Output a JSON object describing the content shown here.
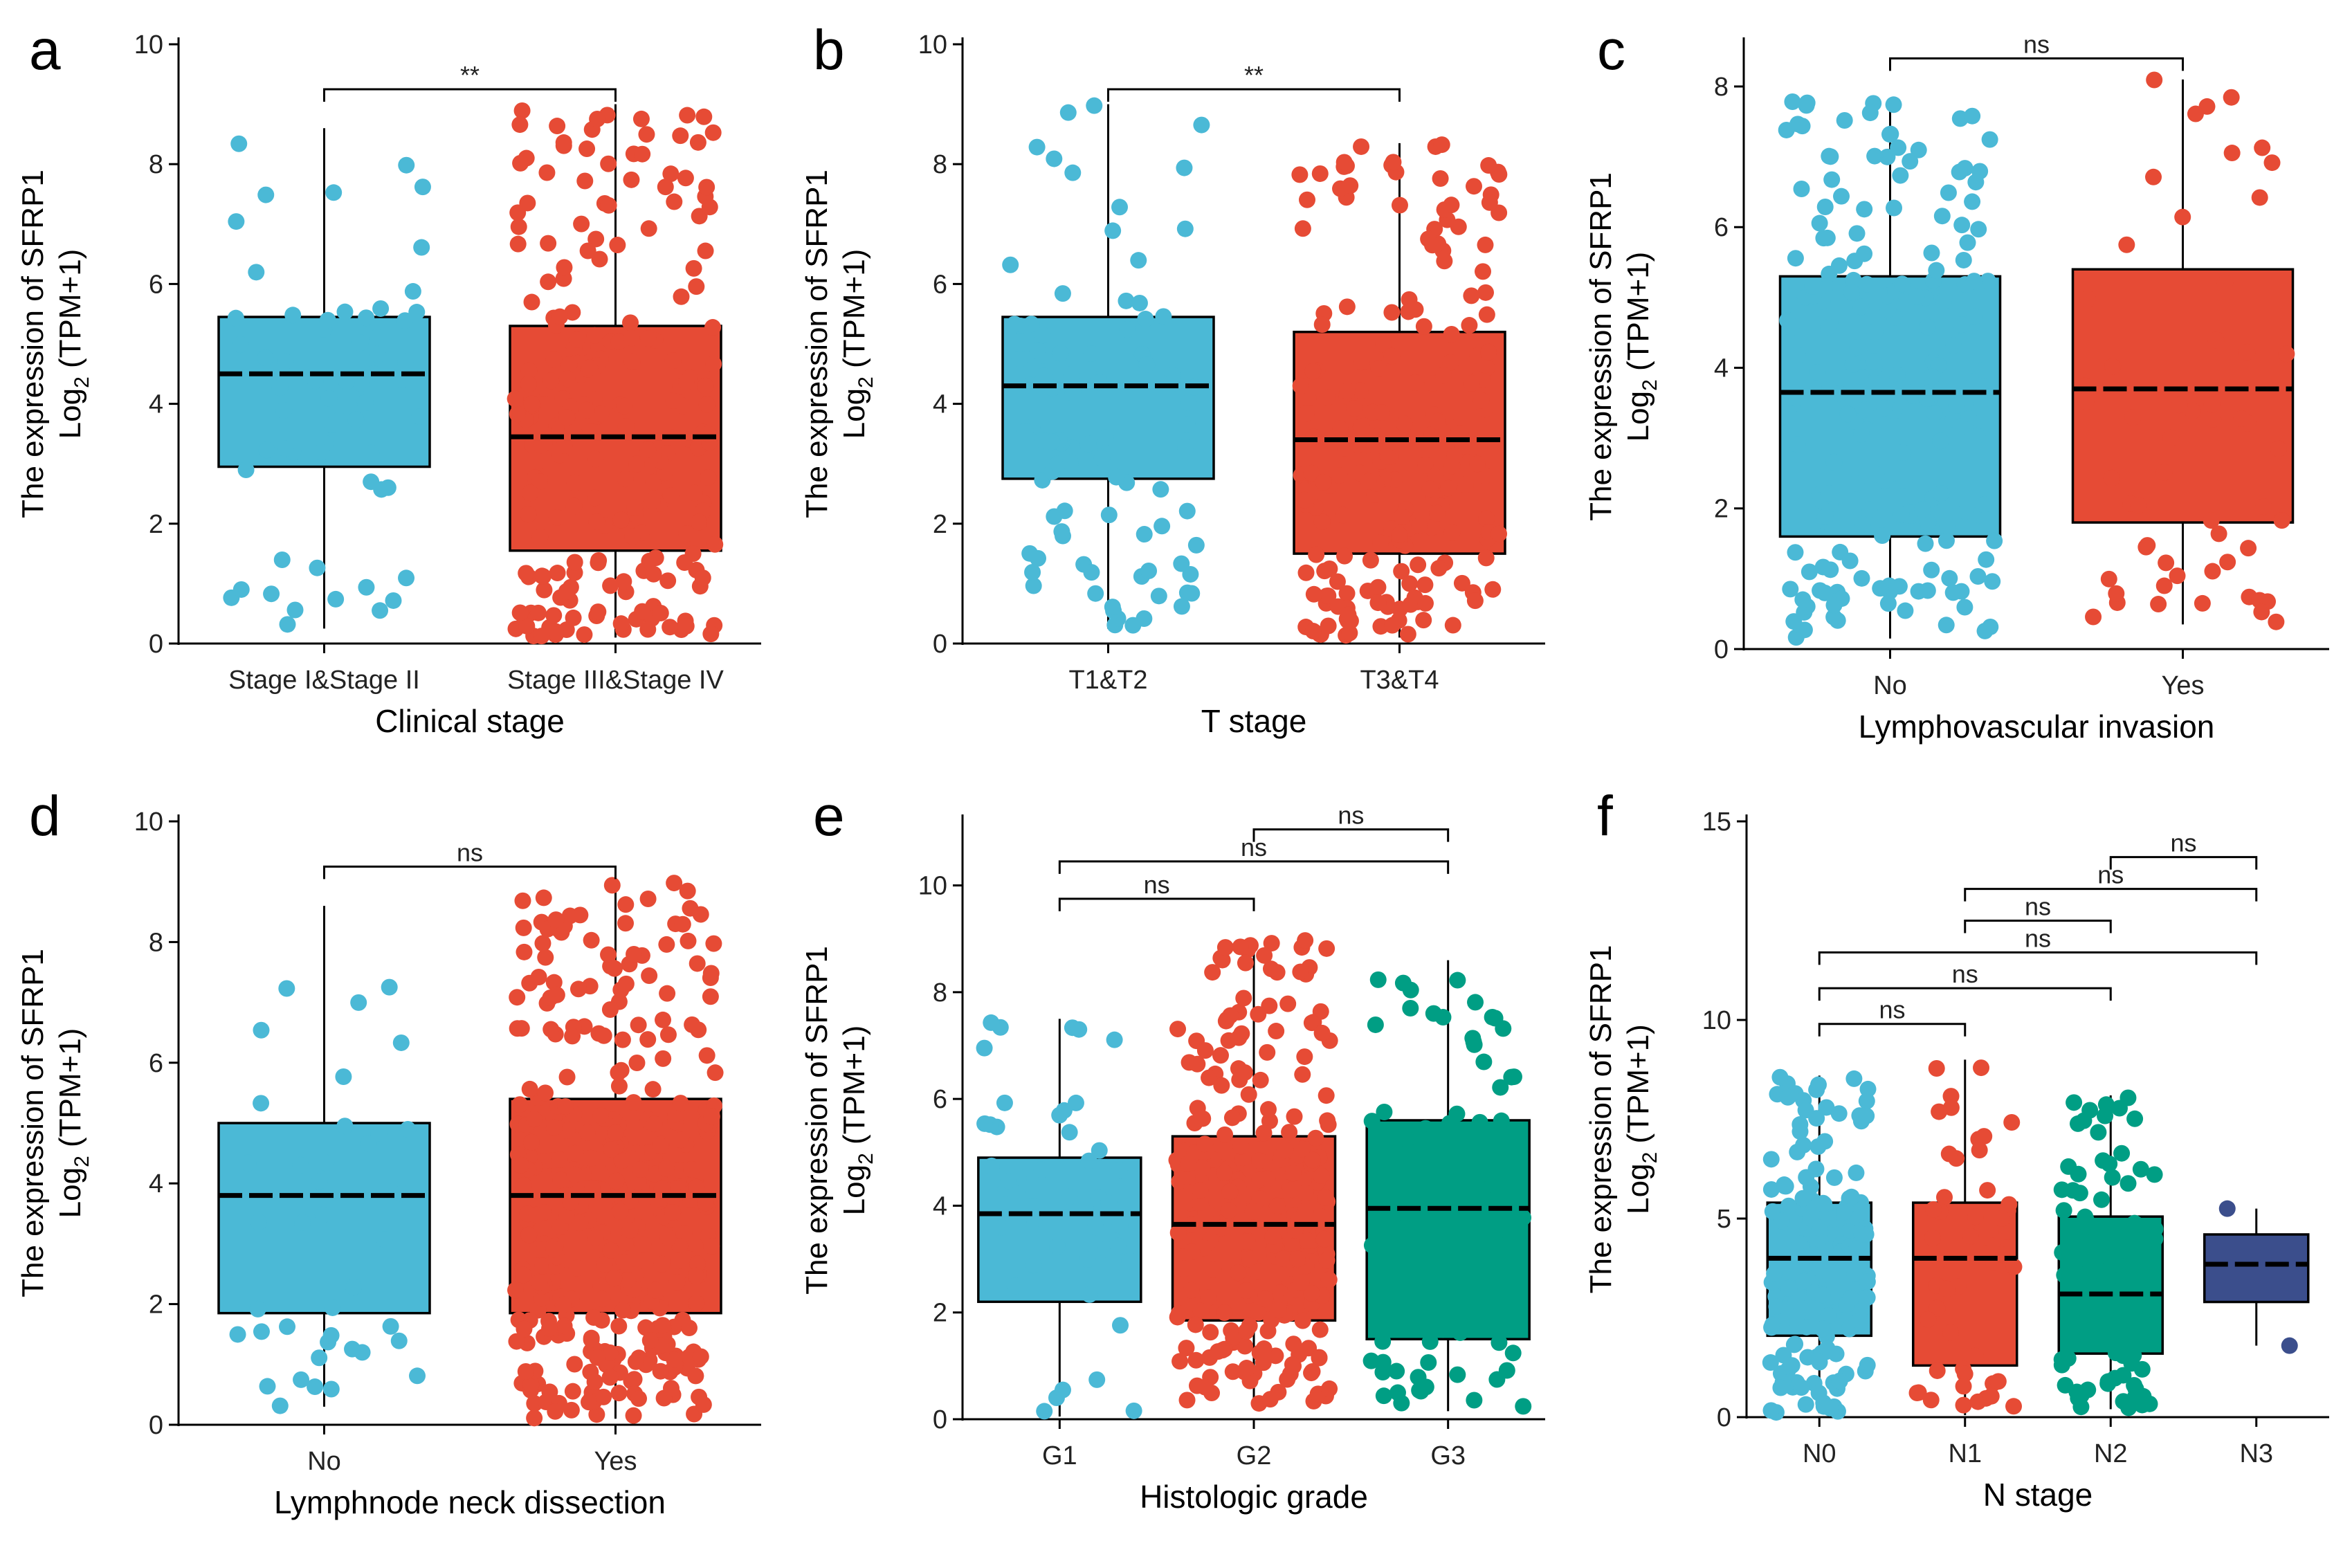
{
  "colors": {
    "blue": "#4BB9D6",
    "red": "#E64B35",
    "green": "#009E84",
    "navy": "#3B4E8C",
    "black": "#000000"
  },
  "y_title_line1": "The expression of SFRP1",
  "y_title_line2_prefix": "Log",
  "y_title_line2_sub": "2",
  "y_title_line2_suffix": " (TPM+1)",
  "chart_data": [
    {
      "type": "box",
      "panel": "a",
      "xlabel": "Clinical stage",
      "ylabel": "The expression of SFRP1 Log2 (TPM+1)",
      "ylim": [
        0,
        10
      ],
      "yticks": [
        0,
        2,
        4,
        6,
        8,
        10
      ],
      "categories": [
        "Stage I&Stage II",
        "Stage III&Stage IV"
      ],
      "boxes": [
        {
          "color": "blue",
          "q1": 2.95,
          "median": 4.5,
          "q3": 5.45,
          "whisker_low": 0.25,
          "whisker_high": 8.6,
          "n": 60
        },
        {
          "color": "red",
          "q1": 1.55,
          "median": 3.45,
          "q3": 5.3,
          "whisker_low": 0.1,
          "whisker_high": 9.0,
          "n": 220
        }
      ],
      "comparisons": [
        {
          "from": 0,
          "to": 1,
          "y": 9.25,
          "label": "**"
        }
      ]
    },
    {
      "type": "box",
      "panel": "b",
      "xlabel": "T stage",
      "ylabel": "The expression of SFRP1 Log2 (TPM+1)",
      "ylim": [
        0,
        10
      ],
      "yticks": [
        0,
        2,
        4,
        6,
        8,
        10
      ],
      "categories": [
        "T1&T2",
        "T3&T4"
      ],
      "boxes": [
        {
          "color": "blue",
          "q1": 2.75,
          "median": 4.3,
          "q3": 5.45,
          "whisker_low": 0.25,
          "whisker_high": 9.0,
          "n": 90
        },
        {
          "color": "red",
          "q1": 1.5,
          "median": 3.4,
          "q3": 5.2,
          "whisker_low": 0.1,
          "whisker_high": 8.35,
          "n": 200
        }
      ],
      "comparisons": [
        {
          "from": 0,
          "to": 1,
          "y": 9.25,
          "label": "**"
        }
      ]
    },
    {
      "type": "box",
      "panel": "c",
      "xlabel": "Lymphovascular invasion",
      "ylabel": "The expression of SFRP1 Log2 (TPM+1)",
      "ylim": [
        0,
        8.6
      ],
      "yticks": [
        0,
        2,
        4,
        6,
        8
      ],
      "categories": [
        "No",
        "Yes"
      ],
      "boxes": [
        {
          "color": "blue",
          "q1": 1.6,
          "median": 3.65,
          "q3": 5.3,
          "whisker_low": 0.15,
          "whisker_high": 7.8,
          "n": 200
        },
        {
          "color": "red",
          "q1": 1.8,
          "median": 3.7,
          "q3": 5.4,
          "whisker_low": 0.35,
          "whisker_high": 8.1,
          "n": 55
        }
      ],
      "comparisons": [
        {
          "from": 0,
          "to": 1,
          "y": 8.4,
          "label": "ns"
        }
      ]
    },
    {
      "type": "box",
      "panel": "d",
      "xlabel": "Lymphnode neck dissection",
      "ylabel": "The expression of SFRP1 Log2 (TPM+1)",
      "ylim": [
        0,
        10
      ],
      "yticks": [
        0,
        2,
        4,
        6,
        8,
        10
      ],
      "categories": [
        "No",
        "Yes"
      ],
      "boxes": [
        {
          "color": "blue",
          "q1": 1.85,
          "median": 3.8,
          "q3": 5.0,
          "whisker_low": 0.3,
          "whisker_high": 8.6,
          "n": 40
        },
        {
          "color": "red",
          "q1": 1.85,
          "median": 3.8,
          "q3": 5.4,
          "whisker_low": 0.1,
          "whisker_high": 9.0,
          "n": 350
        }
      ],
      "comparisons": [
        {
          "from": 0,
          "to": 1,
          "y": 9.25,
          "label": "ns"
        }
      ]
    },
    {
      "type": "box",
      "panel": "e",
      "xlabel": "Histologic grade",
      "ylabel": "The expression of SFRP1 Log2 (TPM+1)",
      "ylim": [
        0,
        11.2
      ],
      "yticks": [
        0,
        2,
        4,
        6,
        8,
        10
      ],
      "categories": [
        "G1",
        "G2",
        "G3"
      ],
      "boxes": [
        {
          "color": "blue",
          "q1": 2.2,
          "median": 3.85,
          "q3": 4.9,
          "whisker_low": 0.05,
          "whisker_high": 7.5,
          "n": 45
        },
        {
          "color": "red",
          "q1": 1.85,
          "median": 3.65,
          "q3": 5.3,
          "whisker_low": 0.25,
          "whisker_high": 9.0,
          "n": 250
        },
        {
          "color": "green",
          "q1": 1.5,
          "median": 3.95,
          "q3": 5.6,
          "whisker_low": 0.15,
          "whisker_high": 8.6,
          "n": 80
        }
      ],
      "comparisons": [
        {
          "from": 0,
          "to": 1,
          "y": 9.75,
          "label": "ns"
        },
        {
          "from": 0,
          "to": 2,
          "y": 10.45,
          "label": "ns"
        },
        {
          "from": 1,
          "to": 2,
          "y": 11.05,
          "label": "ns"
        }
      ]
    },
    {
      "type": "box",
      "panel": "f",
      "xlabel": "N stage",
      "ylabel": "The expression of SFRP1 Log2 (TPM+1)",
      "ylim": [
        0,
        15
      ],
      "yticks": [
        0,
        5,
        10,
        15
      ],
      "categories": [
        "N0",
        "N1",
        "N2",
        "N3"
      ],
      "boxes": [
        {
          "color": "blue",
          "q1": 2.05,
          "median": 4.0,
          "q3": 5.4,
          "whisker_low": 0.1,
          "whisker_high": 8.6,
          "n": 150
        },
        {
          "color": "red",
          "q1": 1.3,
          "median": 4.0,
          "q3": 5.4,
          "whisker_low": 0.05,
          "whisker_high": 9.0,
          "n": 50
        },
        {
          "color": "green",
          "q1": 1.6,
          "median": 3.1,
          "q3": 5.05,
          "whisker_low": 0.2,
          "whisker_high": 8.1,
          "n": 100
        },
        {
          "color": "navy",
          "q1": 2.9,
          "median": 3.85,
          "q3": 4.6,
          "whisker_low": 1.8,
          "whisker_high": 5.25,
          "n": 2,
          "points": [
            5.25,
            1.8
          ]
        }
      ],
      "comparisons": [
        {
          "from": 0,
          "to": 1,
          "y": 9.9,
          "label": "ns"
        },
        {
          "from": 0,
          "to": 2,
          "y": 10.8,
          "label": "ns"
        },
        {
          "from": 0,
          "to": 3,
          "y": 11.7,
          "label": "ns"
        },
        {
          "from": 1,
          "to": 2,
          "y": 12.5,
          "label": "ns"
        },
        {
          "from": 1,
          "to": 3,
          "y": 13.3,
          "label": "ns"
        },
        {
          "from": 2,
          "to": 3,
          "y": 14.1,
          "label": "ns"
        }
      ]
    }
  ]
}
